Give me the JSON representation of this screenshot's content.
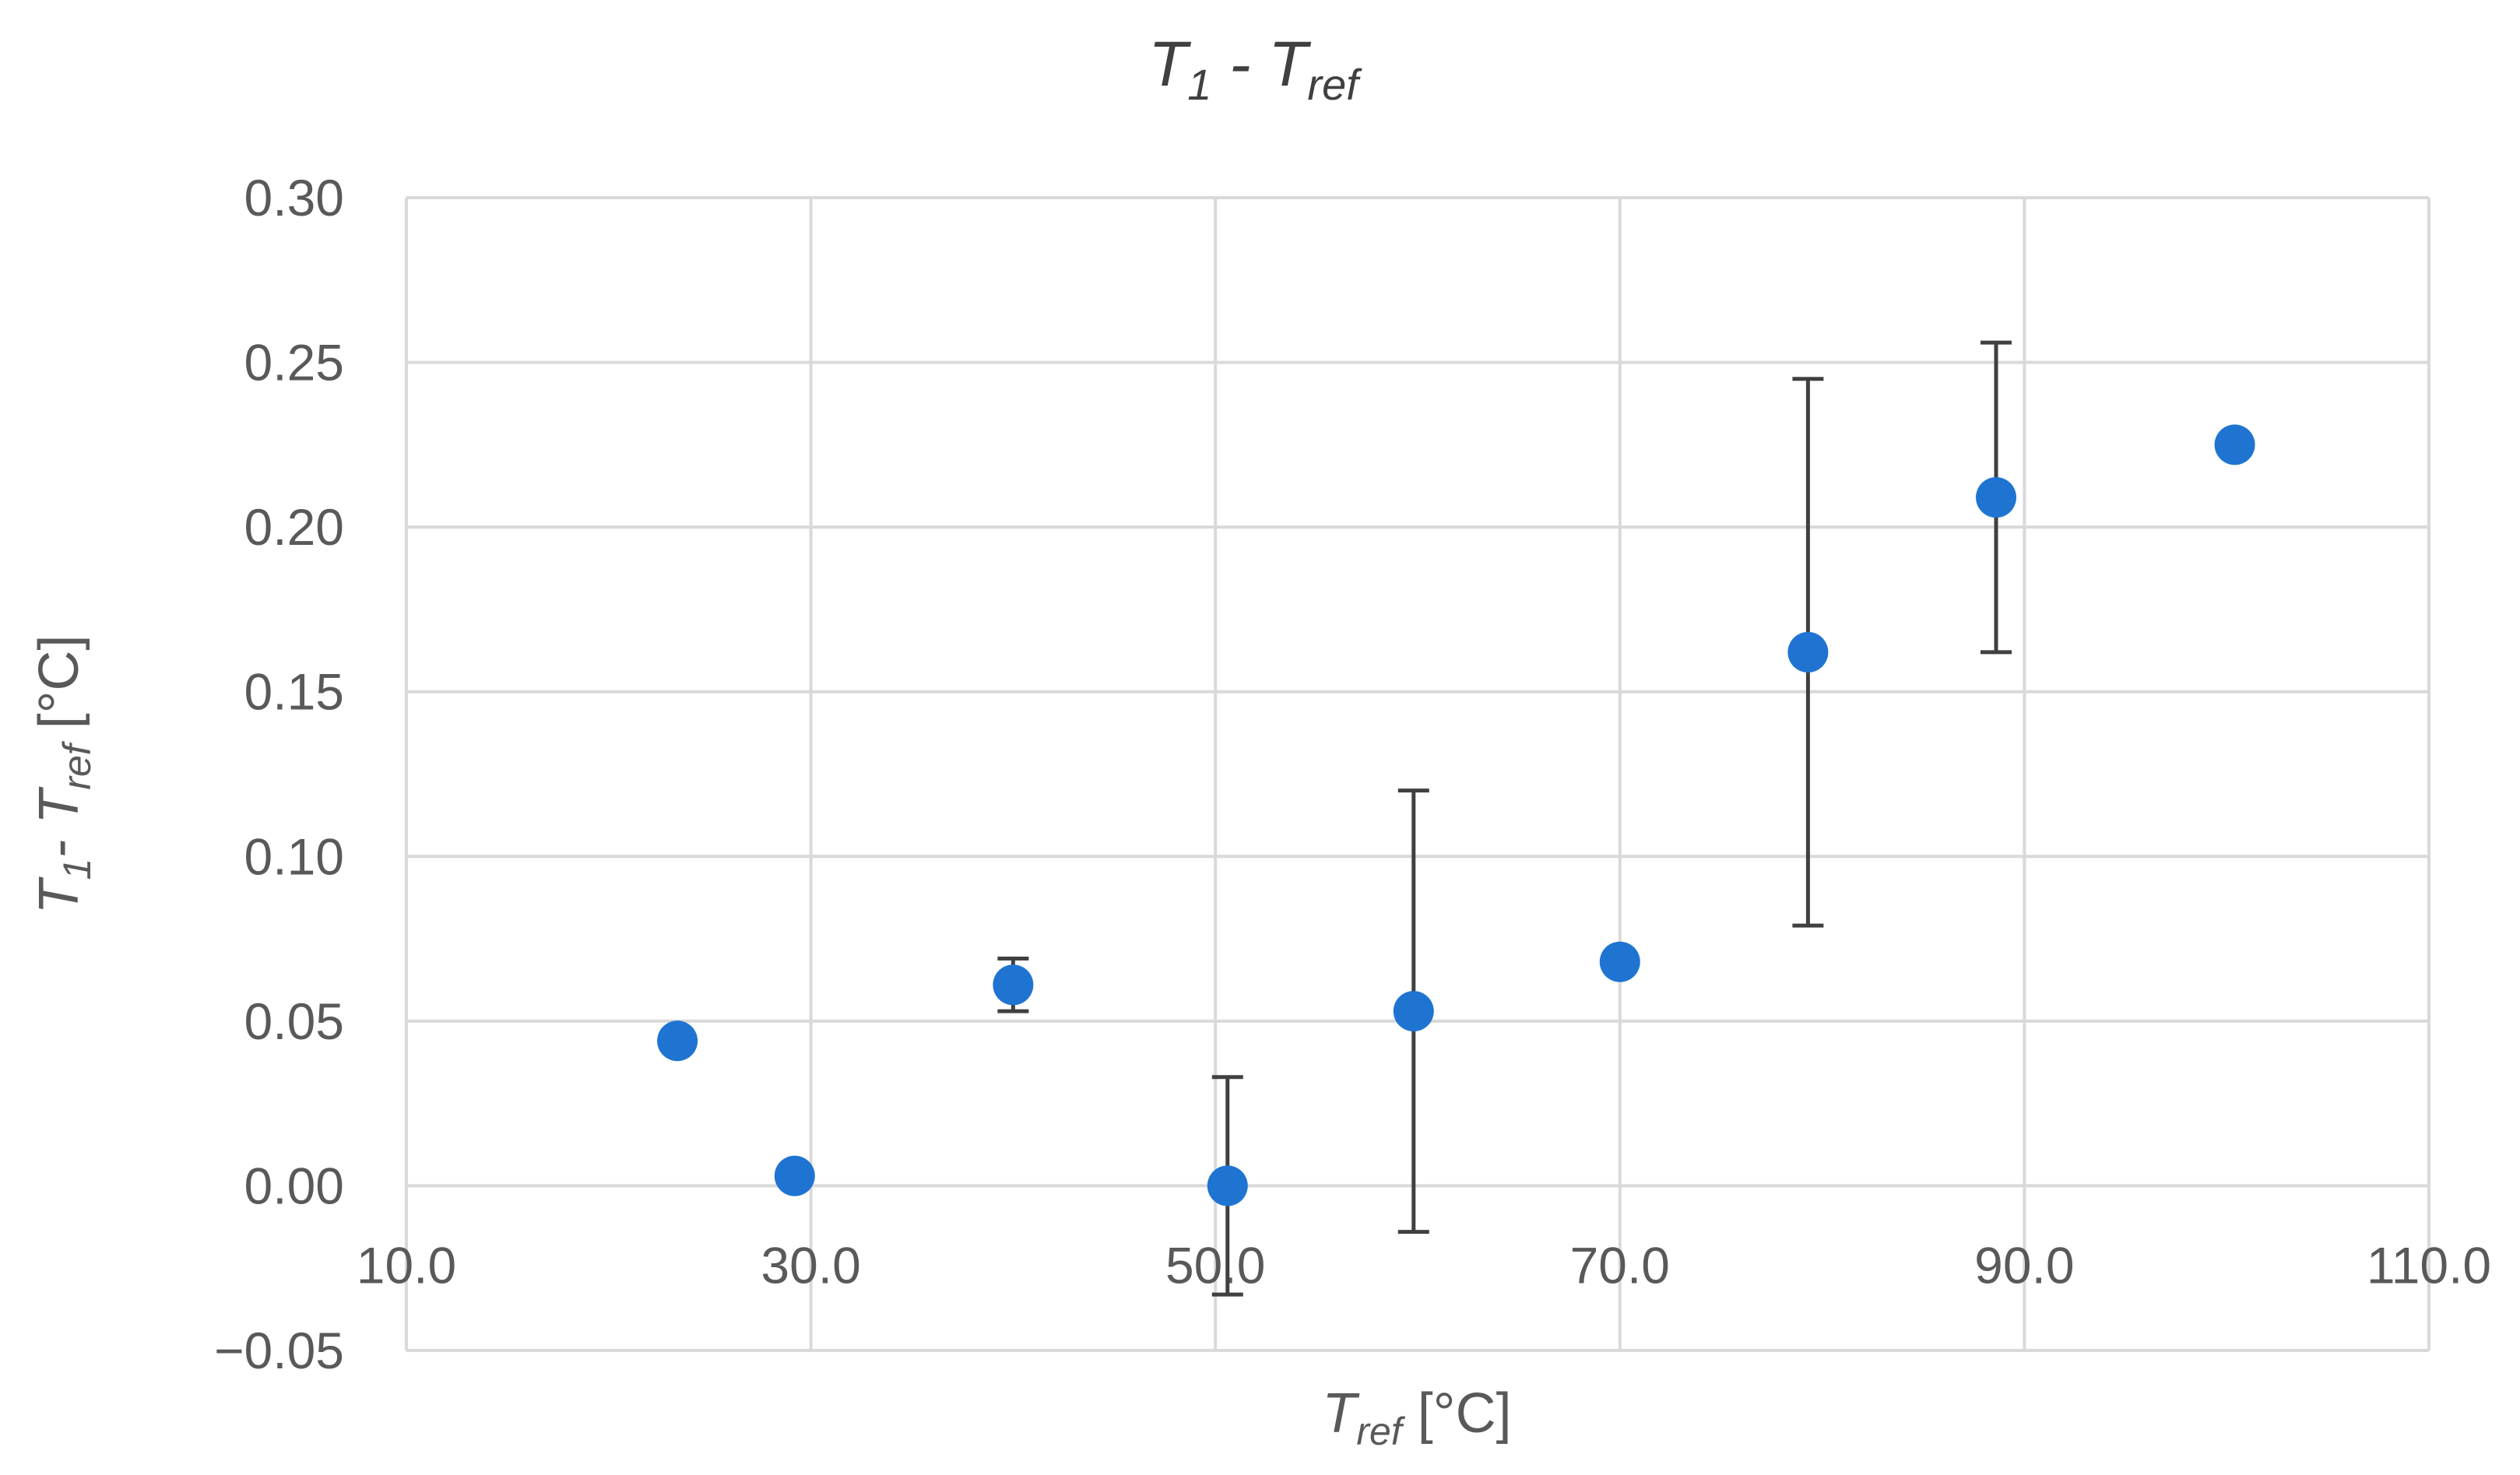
{
  "chart_data": {
    "type": "scatter",
    "title": {
      "main": "T",
      "sub1": "1",
      "mid": " - T",
      "sub2": "ref"
    },
    "xlabel": {
      "main": "T",
      "sub": "ref",
      "unit": " [°C]"
    },
    "ylabel": {
      "main": "T",
      "sub1": "1",
      "mid": "- T",
      "sub2": "ref",
      "unit": " [°C]"
    },
    "xlim": [
      10.0,
      110.0
    ],
    "ylim": [
      -0.05,
      0.3
    ],
    "xticks": [
      "10.0",
      "30.0",
      "50.0",
      "70.0",
      "90.0",
      "110.0"
    ],
    "yticks": [
      "0.30",
      "0.25",
      "0.20",
      "0.15",
      "0.10",
      "0.05",
      "0.00",
      "−0.05"
    ],
    "grid": true,
    "series": [
      {
        "color": "#1f74d2",
        "points": [
          {
            "x": 23.4,
            "y": 0.044,
            "err": 0.002
          },
          {
            "x": 29.2,
            "y": 0.003,
            "err": 0.0
          },
          {
            "x": 40.0,
            "y": 0.061,
            "err": 0.008
          },
          {
            "x": 50.6,
            "y": 0.0,
            "err": 0.033
          },
          {
            "x": 59.8,
            "y": 0.053,
            "err": 0.067
          },
          {
            "x": 70.0,
            "y": 0.068,
            "err": 0.002
          },
          {
            "x": 79.3,
            "y": 0.162,
            "err": 0.083
          },
          {
            "x": 88.6,
            "y": 0.209,
            "err": 0.047
          },
          {
            "x": 100.4,
            "y": 0.225,
            "err": 0.003
          }
        ]
      }
    ]
  }
}
